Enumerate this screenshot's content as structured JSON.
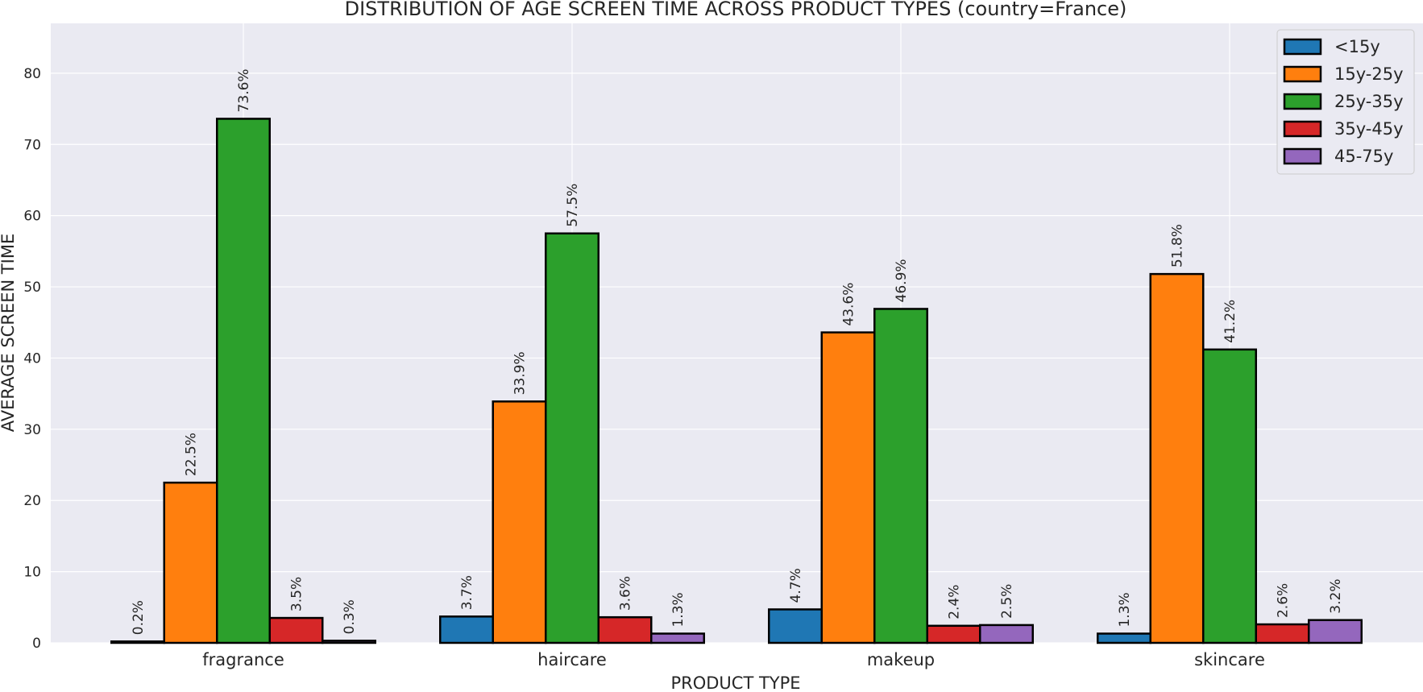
{
  "chart_data": {
    "type": "bar",
    "title": "DISTRIBUTION OF AGE SCREEN TIME ACROSS PRODUCT TYPES (country=France)",
    "xlabel": "PRODUCT TYPE",
    "ylabel": "AVERAGE SCREEN TIME",
    "ylim": [
      0,
      87
    ],
    "yticks": [
      0,
      10,
      20,
      30,
      40,
      50,
      60,
      70,
      80
    ],
    "grid": true,
    "legend_position": "top-right",
    "categories": [
      "fragrance",
      "haircare",
      "makeup",
      "skincare"
    ],
    "series": [
      {
        "name": "<15y",
        "color": "#1f77b4",
        "values": [
          0.2,
          3.7,
          4.7,
          1.3
        ],
        "labels": [
          "0.2%",
          "3.7%",
          "4.7%",
          "1.3%"
        ]
      },
      {
        "name": "15y-25y",
        "color": "#ff7f0e",
        "values": [
          22.5,
          33.9,
          43.6,
          51.8
        ],
        "labels": [
          "22.5%",
          "33.9%",
          "43.6%",
          "51.8%"
        ]
      },
      {
        "name": "25y-35y",
        "color": "#2ca02c",
        "values": [
          73.6,
          57.5,
          46.9,
          41.2
        ],
        "labels": [
          "73.6%",
          "57.5%",
          "46.9%",
          "41.2%"
        ]
      },
      {
        "name": "35y-45y",
        "color": "#d62728",
        "values": [
          3.5,
          3.6,
          2.4,
          2.6
        ],
        "labels": [
          "3.5%",
          "3.6%",
          "2.4%",
          "2.6%"
        ]
      },
      {
        "name": "45-75y",
        "color": "#9467bd",
        "values": [
          0.3,
          1.3,
          2.5,
          3.2
        ],
        "labels": [
          "0.3%",
          "1.3%",
          "2.5%",
          "3.2%"
        ]
      }
    ]
  }
}
